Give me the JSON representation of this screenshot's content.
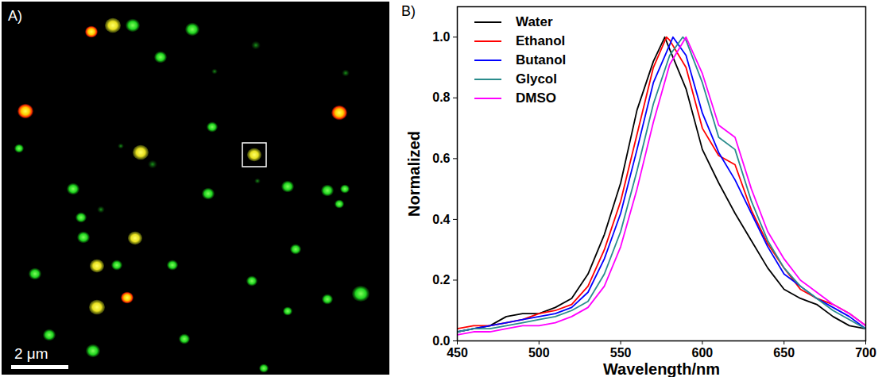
{
  "image": {
    "label": "A)",
    "scale_bar": "2 μm"
  },
  "chart_data": {
    "type": "line",
    "panel_label": "B)",
    "xlabel": "Wavelength/nm",
    "ylabel": "Normalized",
    "xlim": [
      450,
      700
    ],
    "xticks": [
      450,
      500,
      550,
      600,
      650,
      700
    ],
    "ylim": [
      0,
      1.1
    ],
    "yticks": [
      {
        "value": 0,
        "label": "0.0"
      },
      0.2,
      0.4,
      0.6,
      0.8,
      {
        "value": 1,
        "label": "1.0"
      }
    ],
    "grid": false,
    "legend": "upper left",
    "series": [
      {
        "name": "Water",
        "color": "#000000",
        "x": [
          450,
          460,
          470,
          480,
          490,
          500,
          510,
          520,
          530,
          540,
          550,
          560,
          570,
          577,
          580,
          590,
          600,
          610,
          620,
          630,
          640,
          650,
          660,
          670,
          680,
          690,
          700
        ],
        "values": [
          0.03,
          0.04,
          0.05,
          0.08,
          0.09,
          0.09,
          0.11,
          0.14,
          0.22,
          0.35,
          0.52,
          0.76,
          0.92,
          1.0,
          0.96,
          0.83,
          0.63,
          0.52,
          0.42,
          0.33,
          0.24,
          0.17,
          0.14,
          0.12,
          0.08,
          0.05,
          0.04
        ]
      },
      {
        "name": "Ethanol",
        "color": "#ff0000",
        "x": [
          450,
          460,
          470,
          480,
          490,
          500,
          510,
          520,
          530,
          540,
          550,
          560,
          570,
          578,
          580,
          590,
          600,
          610,
          620,
          630,
          640,
          650,
          660,
          670,
          680,
          690,
          700
        ],
        "values": [
          0.04,
          0.05,
          0.05,
          0.06,
          0.07,
          0.09,
          0.1,
          0.12,
          0.18,
          0.3,
          0.46,
          0.68,
          0.9,
          1.0,
          0.99,
          0.9,
          0.7,
          0.61,
          0.58,
          0.43,
          0.32,
          0.24,
          0.17,
          0.14,
          0.12,
          0.09,
          0.05
        ]
      },
      {
        "name": "Butanol",
        "color": "#0000ff",
        "x": [
          450,
          460,
          470,
          480,
          490,
          500,
          510,
          520,
          530,
          540,
          550,
          560,
          570,
          582,
          590,
          600,
          610,
          620,
          630,
          640,
          650,
          660,
          670,
          680,
          690,
          700
        ],
        "values": [
          0.03,
          0.04,
          0.05,
          0.06,
          0.07,
          0.08,
          0.09,
          0.11,
          0.16,
          0.27,
          0.42,
          0.63,
          0.85,
          1.0,
          0.94,
          0.75,
          0.62,
          0.53,
          0.42,
          0.31,
          0.22,
          0.18,
          0.14,
          0.11,
          0.08,
          0.04
        ]
      },
      {
        "name": "Glycol",
        "color": "#2a8c8c",
        "x": [
          450,
          460,
          470,
          480,
          490,
          500,
          510,
          520,
          530,
          540,
          550,
          560,
          570,
          580,
          588,
          590,
          600,
          610,
          620,
          630,
          640,
          650,
          660,
          670,
          680,
          690,
          700
        ],
        "values": [
          0.03,
          0.04,
          0.04,
          0.05,
          0.06,
          0.07,
          0.08,
          0.1,
          0.13,
          0.22,
          0.36,
          0.56,
          0.78,
          0.94,
          1.0,
          0.99,
          0.85,
          0.67,
          0.63,
          0.46,
          0.33,
          0.24,
          0.18,
          0.14,
          0.1,
          0.07,
          0.04
        ]
      },
      {
        "name": "DMSO",
        "color": "#ff00ff",
        "x": [
          450,
          460,
          470,
          480,
          490,
          500,
          510,
          520,
          530,
          540,
          550,
          560,
          570,
          580,
          590,
          600,
          610,
          620,
          630,
          640,
          650,
          660,
          670,
          680,
          690,
          700
        ],
        "values": [
          0.02,
          0.03,
          0.03,
          0.04,
          0.05,
          0.05,
          0.06,
          0.08,
          0.11,
          0.18,
          0.31,
          0.5,
          0.72,
          0.91,
          1.0,
          0.88,
          0.71,
          0.67,
          0.5,
          0.36,
          0.27,
          0.2,
          0.16,
          0.12,
          0.09,
          0.05
        ]
      }
    ]
  }
}
